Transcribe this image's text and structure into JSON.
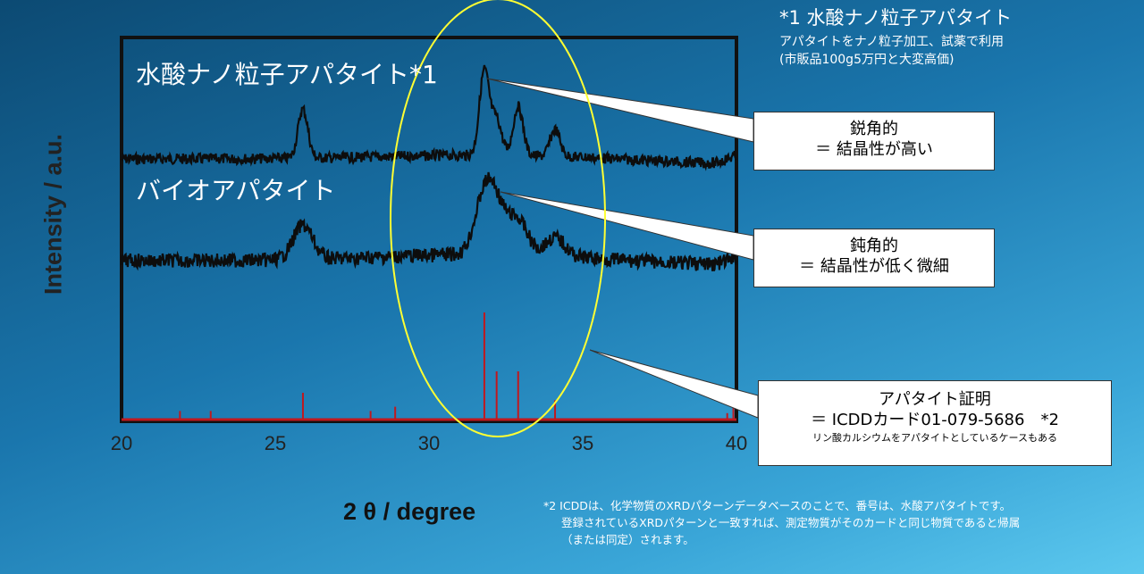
{
  "chart_data": {
    "type": "line",
    "xlabel": "2 θ / degree",
    "ylabel": "Intensity / a.u.",
    "xlim": [
      20,
      40
    ],
    "ticks": [
      "20",
      "25",
      "30",
      "35",
      "40"
    ],
    "grid": false,
    "series": [
      {
        "name": "水酸ナノ粒子アパタイト*1",
        "peaks": [
          [
            25.9,
            55
          ],
          [
            31.8,
            95
          ],
          [
            32.2,
            40
          ],
          [
            32.9,
            55
          ],
          [
            34.1,
            30
          ]
        ],
        "baseline": 0
      },
      {
        "name": "バイオアパタイト",
        "peaks": [
          [
            25.9,
            45
          ],
          [
            31.8,
            70
          ],
          [
            32.2,
            50
          ],
          [
            32.9,
            45
          ],
          [
            34.1,
            25
          ]
        ],
        "baseline": 0
      }
    ],
    "reference_lines": {
      "x": [
        21.9,
        22.9,
        25.9,
        28.1,
        28.9,
        31.8,
        32.2,
        32.9,
        34.1,
        39.7,
        39.9
      ],
      "height": [
        8,
        8,
        25,
        8,
        12,
        100,
        45,
        45,
        18,
        6,
        15
      ]
    }
  },
  "note": {
    "title": "*1 水酸ナノ粒子アパタイト",
    "line1": "アパタイトをナノ粒子加工、試薬で利用",
    "line2": "(市販品100g5万円と大変高価)"
  },
  "callouts": {
    "sharp": {
      "line1": "鋭角的",
      "line2": "＝ 結晶性が高い"
    },
    "broad": {
      "line1": "鈍角的",
      "line2": "＝ 結晶性が低く微細"
    },
    "reference": {
      "line1": "アパタイト証明",
      "line2": "＝ ICDDカード01-079-5686　*2",
      "line3": "リン酸カルシウムをアパタイトとしているケースもある"
    }
  },
  "footnote": {
    "line1": "*2  ICDDは、化学物質のXRDパターンデータベースのことで、番号は、水酸アパタイトです。",
    "line2": "登録されているXRDパターンと一致すれば、測定物質がそのカードと同じ物質であると帰属",
    "line3": "（または同定）されます。"
  },
  "colors": {
    "trace": "#0d0d0d",
    "reference": "#c0181e",
    "ellipse": "#ffff33",
    "plot_border": "#111111"
  }
}
